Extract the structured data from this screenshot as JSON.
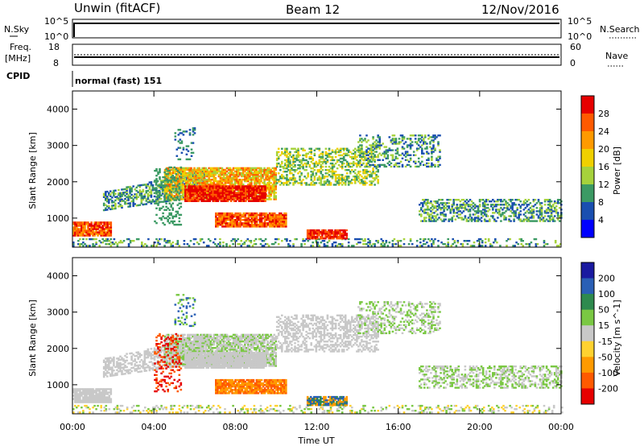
{
  "header": {
    "station": "Unwin (fitACF)",
    "beam": "Beam 12",
    "date": "12/Nov/2016"
  },
  "top_panels": {
    "nsky_label": "N.Sky",
    "nsky_max": "10^5",
    "nsky_min": "10^0",
    "nsearch_label": "N.Search",
    "nsearch_max": "10^5",
    "nsearch_min": "10^0",
    "freq_label_1": "Freq.",
    "freq_label_2": "[MHz]",
    "freq_max": "18",
    "freq_min": "8",
    "nave_label": "Nave",
    "nave_max": "60",
    "nave_min": "0",
    "cpid_label": "CPID",
    "cpid_text": "normal (fast) 151"
  },
  "chart_data": [
    {
      "type": "heatmap",
      "name": "power",
      "ylabel": "Slant Range [km]",
      "xlabel": "",
      "xlim": [
        0,
        24
      ],
      "ylim": [
        200,
        4500
      ],
      "x_ticks": [
        "00:00",
        "04:00",
        "08:00",
        "12:00",
        "16:00",
        "20:00",
        "00:00"
      ],
      "y_ticks": [
        1000,
        2000,
        3000,
        4000
      ],
      "colorbar": {
        "label": "Power [dB]",
        "ticks": [
          "28",
          "24",
          "20",
          "16",
          "12",
          "8",
          "4"
        ],
        "colors": [
          "#e60000",
          "#ff5a00",
          "#ff9a00",
          "#f0d000",
          "#a6d23c",
          "#3c9a64",
          "#1a4fb0",
          "#0000ff"
        ]
      }
    },
    {
      "type": "heatmap",
      "name": "velocity",
      "ylabel": "Slant Range [km]",
      "xlabel": "Time UT",
      "xlim": [
        0,
        24
      ],
      "ylim": [
        200,
        4500
      ],
      "x_ticks": [
        "00:00",
        "04:00",
        "08:00",
        "12:00",
        "16:00",
        "20:00",
        "00:00"
      ],
      "y_ticks": [
        1000,
        2000,
        3000,
        4000
      ],
      "colorbar": {
        "label": "Velocity [m s^-1]",
        "ticks": [
          "200",
          "100",
          "50",
          "15",
          "-15",
          "-50",
          "-100",
          "-200"
        ],
        "colors": [
          "#1a1aa0",
          "#2a5fb5",
          "#2e8a4e",
          "#7ac843",
          "#c8c8c8",
          "#ffd230",
          "#ff9a00",
          "#ff5a00",
          "#e60000"
        ]
      }
    }
  ]
}
